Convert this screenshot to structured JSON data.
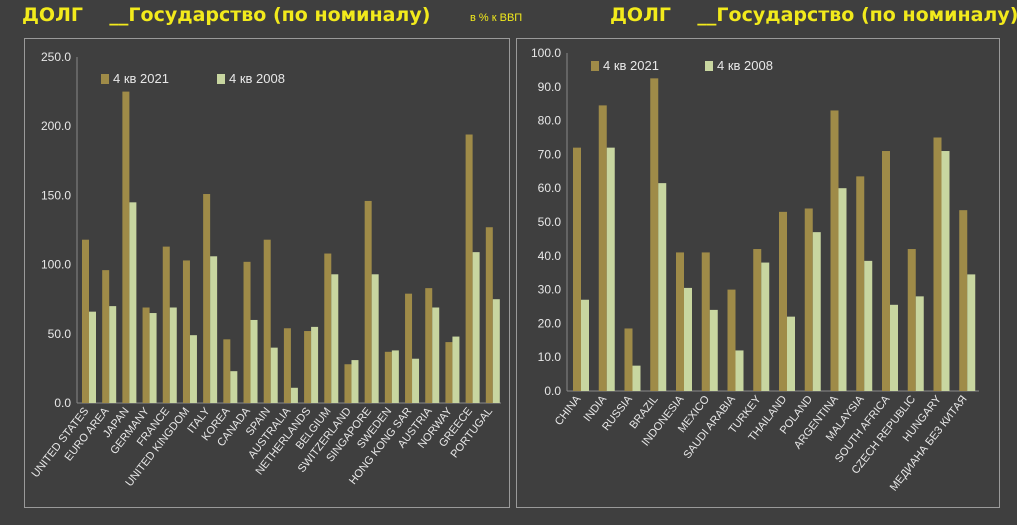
{
  "header": {
    "left_title": "ДОЛГ    __Государство (по номиналу)",
    "subtitle": "в % к ВВП",
    "right_title": "ДОЛГ    __Государство (по номиналу)"
  },
  "colors": {
    "series_2021": "#9f8b48",
    "series_2008": "#c8d6a0",
    "text": "#e8e8e8",
    "title": "#f2ea1c"
  },
  "chart_data": [
    {
      "type": "bar",
      "title": "ДОЛГ    __Государство (по номиналу)",
      "ylim": [
        0,
        250
      ],
      "yticks": [
        "0.0",
        "50.0",
        "100.0",
        "150.0",
        "200.0",
        "250.0"
      ],
      "grid": false,
      "legend": "top-left",
      "categories": [
        "UNITED STATES",
        "EURO AREA",
        "JAPAN",
        "GERMANY",
        "FRANCE",
        "UNITED KINGDOM",
        "ITALY",
        "KOREA",
        "CANADA",
        "SPAIN",
        "AUSTRALIA",
        "NETHERLANDS",
        "BELGIUM",
        "SWITZERLAND",
        "SINGAPORE",
        "SWEDEN",
        "HONG KONG SAR",
        "AUSTRIA",
        "NORWAY",
        "GREECE",
        "PORTUGAL"
      ],
      "series": [
        {
          "name": "4 кв 2021",
          "values": [
            118,
            96,
            225,
            69,
            113,
            103,
            151,
            46,
            102,
            118,
            54,
            52,
            108,
            28,
            146,
            37,
            79,
            83,
            44,
            194,
            127
          ]
        },
        {
          "name": "4 кв 2008",
          "values": [
            66,
            70,
            145,
            65,
            69,
            49,
            106,
            23,
            60,
            40,
            11,
            55,
            93,
            31,
            93,
            38,
            32,
            69,
            48,
            109,
            75
          ]
        }
      ]
    },
    {
      "type": "bar",
      "title": "ДОЛГ    __Государство (по номиналу)",
      "ylim": [
        0,
        100
      ],
      "yticks": [
        "0.0",
        "10.0",
        "20.0",
        "30.0",
        "40.0",
        "50.0",
        "60.0",
        "70.0",
        "80.0",
        "90.0",
        "100.0"
      ],
      "grid": false,
      "legend": "top-left",
      "categories": [
        "CHINA",
        "INDIA",
        "RUSSIA",
        "BRAZIL",
        "INDONESIA",
        "MEXICO",
        "SAUDI ARABIA",
        "TURKEY",
        "THAILAND",
        "POLAND",
        "ARGENTINA",
        "MALAYSIA",
        "SOUTH AFRICA",
        "CZECH REPUBLIC",
        "HUNGARY",
        "МЕДИАНА БЕЗ КИТАЯ"
      ],
      "series": [
        {
          "name": "4 кв 2021",
          "values": [
            72,
            84.5,
            18.5,
            92.5,
            41,
            41,
            30,
            42,
            53,
            54,
            83,
            63.5,
            71,
            42,
            75,
            53.5
          ]
        },
        {
          "name": "4 кв 2008",
          "values": [
            27,
            72,
            7.5,
            61.5,
            30.5,
            24,
            12,
            38,
            22,
            47,
            60,
            38.5,
            25.5,
            28,
            71,
            34.5
          ]
        }
      ]
    }
  ]
}
